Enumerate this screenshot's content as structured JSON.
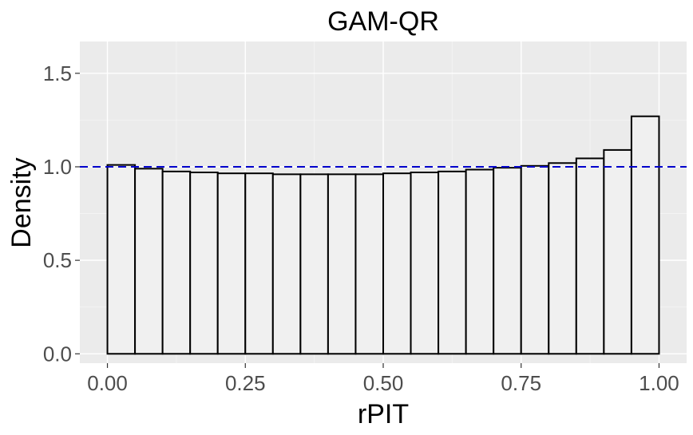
{
  "chart_data": {
    "type": "bar",
    "title": "GAM-QR",
    "xlabel": "rPIT",
    "ylabel": "Density",
    "xlim": [
      -0.05,
      1.05
    ],
    "ylim": [
      -0.05,
      1.67
    ],
    "x_ticks": [
      0,
      0.25,
      0.5,
      0.75,
      1
    ],
    "x_tick_labels": [
      "0.00",
      "0.25",
      "0.50",
      "0.75",
      "1.00"
    ],
    "y_ticks": [
      0,
      0.5,
      1,
      1.5
    ],
    "y_tick_labels": [
      "0.0",
      "0.5",
      "1.0",
      "1.5"
    ],
    "bin_width": 0.05,
    "bin_starts": [
      0,
      0.05,
      0.1,
      0.15,
      0.2,
      0.25,
      0.3,
      0.35,
      0.4,
      0.45,
      0.5,
      0.55,
      0.6,
      0.65,
      0.7,
      0.75,
      0.8,
      0.85,
      0.9,
      0.95
    ],
    "values": [
      1.01,
      0.99,
      0.975,
      0.97,
      0.965,
      0.965,
      0.96,
      0.96,
      0.96,
      0.96,
      0.965,
      0.97,
      0.975,
      0.985,
      0.995,
      1.005,
      1.02,
      1.045,
      1.09,
      1.27
    ],
    "reference_line": {
      "y": 1.0,
      "style": "dashed",
      "color": "#0000cc"
    },
    "grid": true,
    "colors": {
      "panel": "#ebebeb",
      "bar_fill": "#f0f0f0",
      "bar_outline": "#000000"
    }
  }
}
